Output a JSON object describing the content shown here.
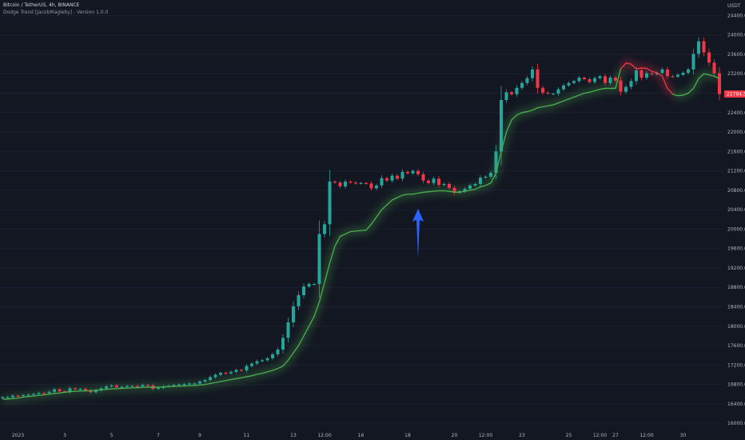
{
  "header": {
    "symbol_line": "Bitcoin / TetherUS, 4h, BINANCE",
    "indicator_line": "Dodge Trend [JacobMagleby] - Version 1.0.0"
  },
  "colors": {
    "background": "#131722",
    "up": "#26a69a",
    "down": "#f23645",
    "trend_bull": "#4caf50",
    "trend_bear": "#f23645",
    "price_label_bg": "#f23645",
    "arrow": "#2962ff",
    "axis_text": "#b2b5be"
  },
  "chart_data": {
    "type": "candlestick",
    "title": "Bitcoin / TetherUS, 4h, BINANCE",
    "indicator": "Dodge Trend [JacobMagleby] - Version 1.0.0",
    "currency": "USDT",
    "y_ticks": [
      16000,
      16400,
      16800,
      17200,
      17600,
      18000,
      18400,
      18800,
      19200,
      19600,
      20000,
      20400,
      20800,
      21200,
      21600,
      22000,
      22400,
      22800,
      23200,
      23600,
      24000,
      24400
    ],
    "y_tick_labels": [
      "16000.00",
      "16400.00",
      "16800.00",
      "17200.00",
      "17600.00",
      "18000.00",
      "18400.00",
      "18800.00",
      "19200.00",
      "19600.00",
      "20000.00",
      "20400.00",
      "20800.00",
      "21200.00",
      "21600.00",
      "22000.00",
      "22400.00",
      "22800.00",
      "23200.00",
      "23600.00",
      "24000.00",
      "24400.00"
    ],
    "ylim": [
      15920,
      24720
    ],
    "x_ticks": [
      {
        "label": "2023",
        "index": 3
      },
      {
        "label": "3",
        "index": 12
      },
      {
        "label": "5",
        "index": 21
      },
      {
        "label": "7",
        "index": 30
      },
      {
        "label": "9",
        "index": 38
      },
      {
        "label": "11",
        "index": 47
      },
      {
        "label": "13",
        "index": 56
      },
      {
        "label": "12:00",
        "index": 62
      },
      {
        "label": "16",
        "index": 69
      },
      {
        "label": "18",
        "index": 78
      },
      {
        "label": "20",
        "index": 87
      },
      {
        "label": "12:00",
        "index": 93
      },
      {
        "label": "23",
        "index": 100
      },
      {
        "label": "25",
        "index": 109
      },
      {
        "label": "12:00",
        "index": 115
      },
      {
        "label": "27",
        "index": 118
      },
      {
        "label": "12:00",
        "index": 124
      },
      {
        "label": "30",
        "index": 131
      }
    ],
    "last_price_label": "22784.56",
    "last_price": 22784.56,
    "close": [
      16540,
      16540,
      16570,
      16560,
      16580,
      16590,
      16605,
      16625,
      16620,
      16650,
      16700,
      16660,
      16650,
      16720,
      16700,
      16710,
      16680,
      16640,
      16680,
      16720,
      16760,
      16780,
      16740,
      16750,
      16770,
      16770,
      16760,
      16790,
      16780,
      16710,
      16730,
      16760,
      16770,
      16790,
      16800,
      16810,
      16820,
      16820,
      16860,
      16890,
      16950,
      17000,
      17040,
      17030,
      17060,
      17100,
      17090,
      17180,
      17230,
      17280,
      17300,
      17340,
      17420,
      17520,
      17760,
      18080,
      18410,
      18640,
      18820,
      18870,
      18870,
      19900,
      20100,
      20980,
      20960,
      20880,
      20980,
      20960,
      20940,
      20950,
      20940,
      20840,
      20900,
      21050,
      21000,
      21100,
      21040,
      21180,
      21150,
      21200,
      21130,
      21000,
      20950,
      21040,
      20910,
      20930,
      20850,
      20750,
      20780,
      20830,
      20900,
      20930,
      21060,
      21080,
      21160,
      21600,
      22660,
      22820,
      22780,
      22910,
      23010,
      23110,
      23290,
      22910,
      22810,
      22790,
      22790,
      22880,
      22960,
      23010,
      23050,
      23120,
      23090,
      23030,
      23110,
      23150,
      23010,
      23120,
      23060,
      22830,
      22930,
      23050,
      23270,
      23120,
      23210,
      23190,
      23220,
      23290,
      23150,
      23140,
      23180,
      23220,
      23290,
      23610,
      23870,
      23640,
      23430,
      23210,
      22780
    ],
    "trend": [
      16500,
      16500,
      16510,
      16520,
      16540,
      16550,
      16560,
      16575,
      16585,
      16600,
      16615,
      16625,
      16640,
      16650,
      16660,
      16665,
      16670,
      16670,
      16680,
      16690,
      16700,
      16710,
      16715,
      16720,
      16725,
      16730,
      16735,
      16740,
      16745,
      16745,
      16745,
      16750,
      16755,
      16760,
      16765,
      16770,
      16775,
      16780,
      16790,
      16800,
      16820,
      16840,
      16860,
      16880,
      16900,
      16920,
      16940,
      16960,
      16980,
      17010,
      17030,
      17060,
      17090,
      17130,
      17180,
      17300,
      17450,
      17600,
      17800,
      18000,
      18200,
      18500,
      18900,
      19300,
      19650,
      19850,
      19900,
      19950,
      19960,
      19970,
      19980,
      20100,
      20250,
      20400,
      20500,
      20600,
      20650,
      20700,
      20720,
      20720,
      20740,
      20760,
      20770,
      20780,
      20790,
      20790,
      20780,
      20760,
      20760,
      20780,
      20800,
      20820,
      20870,
      20900,
      20950,
      21150,
      21600,
      22000,
      22250,
      22350,
      22400,
      22420,
      22450,
      22500,
      22520,
      22540,
      22560,
      22600,
      22640,
      22680,
      22720,
      22760,
      22800,
      22820,
      22850,
      22880,
      22900,
      22900,
      22900,
      23300,
      23420,
      23400,
      23300,
      23320,
      23310,
      23250,
      23220,
      23150,
      22900,
      22780,
      22750,
      22760,
      22800,
      22900,
      23100,
      23200,
      23180,
      23150,
      23100
    ],
    "trend_bear_from_index": 119,
    "trend_bear_to_index": 129,
    "annotation": {
      "type": "arrow-up",
      "index": 80,
      "price_tip": 20420,
      "price_tail": 19400
    }
  }
}
